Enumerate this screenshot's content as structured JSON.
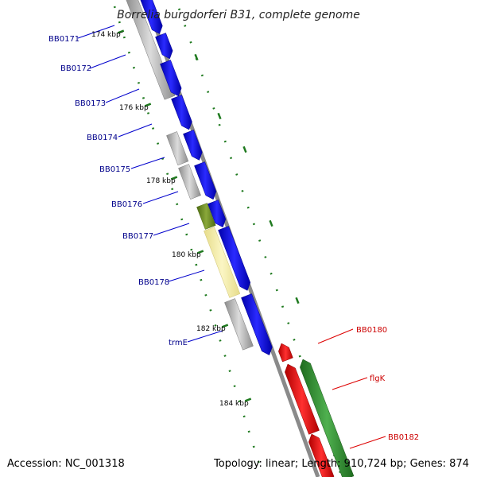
{
  "title": "Borrelia burgdorferi B31, complete genome",
  "accession": "Accession: NC_001318",
  "summary": "Topology: linear; Length: 910,724 bp; Genes: 874",
  "colors": {
    "forward_gene": "#0000ee",
    "reverse_gene": "#ee0000",
    "cds_grey": "#b4b4b4",
    "olive": "#6b8e23",
    "khaki": "#f0e68c",
    "green": "#2e8b2e",
    "backbone": "#888888",
    "tick": "#1f7a1f",
    "forward_label": "#00008b",
    "reverse_label": "#cc0000"
  },
  "kbp_ticks": [
    "174 kbp",
    "176 kbp",
    "178 kbp",
    "180 kbp",
    "182 kbp",
    "184 kbp"
  ],
  "forward_labels": [
    "BB0171",
    "BB0172",
    "BB0173",
    "BB0174",
    "BB0175",
    "BB0176",
    "BB0177",
    "BB0178",
    "trmE"
  ],
  "reverse_labels": [
    "BB0180",
    "flgK",
    "BB0182"
  ]
}
